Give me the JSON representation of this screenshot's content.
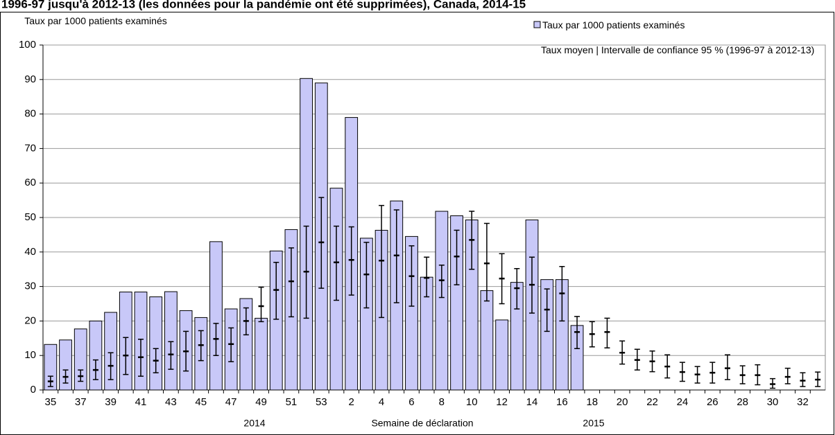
{
  "chart_data": {
    "type": "bar",
    "title": "1996-97 jusqu'à 2012-13 (les données pour la pandémie ont été supprimées), Canada, 2014-15",
    "y_label": "Taux par 1000  patients examinés",
    "x_label": "Semaine de déclaration",
    "year_labels": [
      "2014",
      "2015"
    ],
    "categories": [
      "35",
      null,
      "37",
      null,
      "39",
      null,
      "41",
      null,
      "43",
      null,
      "45",
      null,
      "47",
      null,
      "49",
      null,
      "51",
      null,
      "53",
      null,
      "2",
      null,
      "4",
      null,
      "6",
      null,
      "8",
      null,
      "10",
      null,
      "12",
      null,
      "14",
      null,
      "16",
      null,
      "18",
      null,
      "20",
      null,
      "22",
      null,
      "24",
      null,
      "26",
      null,
      "28",
      null,
      "30",
      null,
      "32",
      null
    ],
    "series": [
      {
        "name": "Taux par 1000 patients examinés",
        "color": "#c8c8f8",
        "values": [
          13.2,
          14.5,
          17.7,
          20,
          22.5,
          28.4,
          28.4,
          27,
          28.5,
          23,
          21,
          43,
          23.5,
          26.5,
          20.8,
          40.3,
          46.5,
          90.3,
          89,
          58.5,
          79,
          44,
          46.3,
          54.8,
          44.5,
          32.7,
          51.8,
          50.5,
          49.3,
          28.8,
          20.3,
          31.2,
          49.3,
          32,
          32,
          18.7,
          null,
          null,
          null,
          null,
          null,
          null,
          null,
          null,
          null,
          null,
          null,
          null,
          null,
          null,
          null,
          null
        ]
      },
      {
        "name": "Taux moyen | Intervalle de confiance 95 % (1996-97 à 2012-13)",
        "color": "#000000",
        "values": [
          2.5,
          3.8,
          4,
          5.8,
          7,
          10,
          9.5,
          8.5,
          10.3,
          11.2,
          13,
          14.8,
          13.3,
          20,
          24.3,
          29,
          31.5,
          34.3,
          42.8,
          37,
          37.7,
          33.5,
          37.5,
          39,
          33,
          32.5,
          31.8,
          38.7,
          43.5,
          36.7,
          32.3,
          29.5,
          30.5,
          23.3,
          28,
          16.8,
          16.2,
          16.8,
          10.8,
          8.7,
          8.3,
          6.8,
          5.2,
          4.5,
          5,
          6.3,
          4.3,
          4.3,
          1.7,
          3.8,
          2.7,
          3
        ],
        "low": [
          1,
          2,
          2.5,
          3,
          3,
          4.5,
          4,
          5,
          6,
          5.5,
          8.5,
          10,
          8.2,
          16,
          19.8,
          20.5,
          21.2,
          20.8,
          29.5,
          26,
          27.5,
          23.8,
          21,
          25.3,
          24.3,
          27,
          26.8,
          30.5,
          35,
          25.8,
          25,
          23.5,
          22.3,
          17,
          20,
          12,
          12.5,
          12.2,
          7.5,
          5.8,
          5.3,
          3.5,
          2.5,
          2,
          2,
          3,
          1.8,
          1.5,
          0.5,
          1.8,
          1,
          1
        ],
        "high": [
          4,
          5.8,
          5.8,
          8.7,
          10.8,
          15.2,
          14.7,
          12,
          14,
          17,
          17.2,
          19.3,
          18,
          23.8,
          29.8,
          37,
          41.2,
          47.5,
          55.8,
          47.5,
          47.3,
          42.8,
          53.5,
          52.2,
          41.8,
          38.5,
          36.2,
          46.3,
          51.8,
          48.3,
          39.5,
          35.2,
          38.5,
          29.3,
          35.8,
          21.3,
          19.8,
          20.8,
          14.2,
          11.8,
          11.3,
          10.2,
          8,
          6.8,
          8,
          10.2,
          7,
          7.3,
          3.3,
          6.3,
          5,
          5.2
        ]
      }
    ],
    "ylim": [
      0,
      100
    ],
    "yticks": [
      0,
      10,
      20,
      30,
      40,
      50,
      60,
      70,
      80,
      90,
      100
    ],
    "grid": true
  }
}
